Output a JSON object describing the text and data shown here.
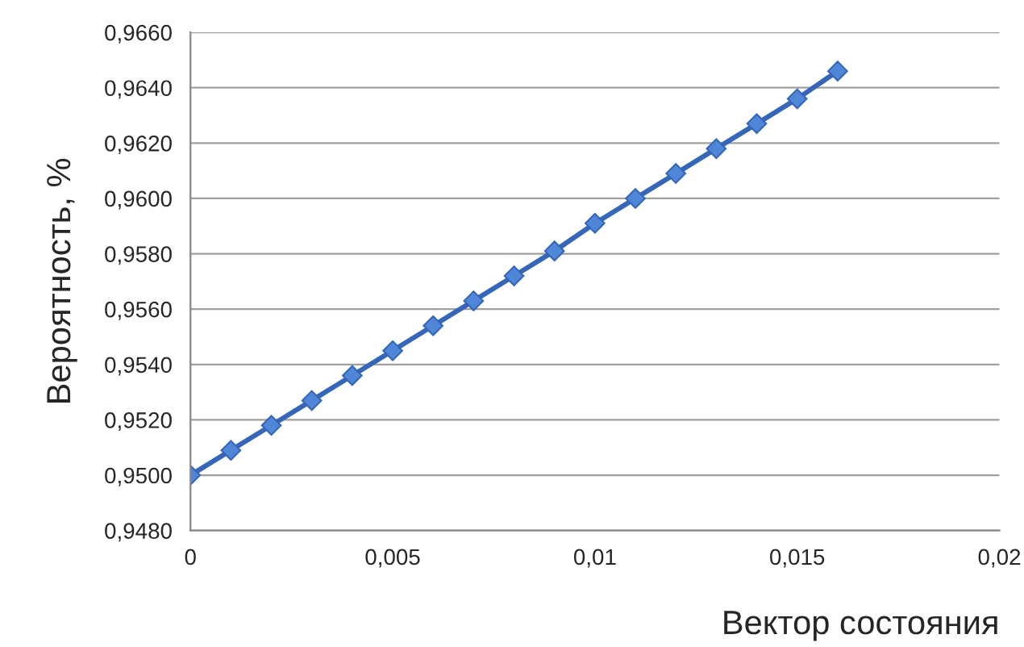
{
  "chart_data": {
    "type": "line",
    "xlabel": "Вектор состояния",
    "ylabel": "Вероятность, %",
    "x": [
      0,
      0.001,
      0.002,
      0.003,
      0.004,
      0.005,
      0.006,
      0.007,
      0.008,
      0.009,
      0.01,
      0.011,
      0.012,
      0.013,
      0.014,
      0.015,
      0.016
    ],
    "series": [
      {
        "color": "#3566b8",
        "values": [
          0.95,
          0.9509,
          0.9518,
          0.9527,
          0.9536,
          0.9545,
          0.9554,
          0.9563,
          0.9572,
          0.9581,
          0.9591,
          0.96,
          0.9609,
          0.9618,
          0.9627,
          0.9636,
          0.9646
        ]
      }
    ],
    "xlim": [
      0,
      0.02
    ],
    "xticks": [
      {
        "value": 0,
        "label": "0"
      },
      {
        "value": 0.005,
        "label": "0,005"
      },
      {
        "value": 0.01,
        "label": "0,01"
      },
      {
        "value": 0.015,
        "label": "0,015"
      },
      {
        "value": 0.02,
        "label": "0,02"
      }
    ],
    "ylim": [
      0.948,
      0.966
    ],
    "yticks": [
      {
        "value": 0.948,
        "label": "0,9480"
      },
      {
        "value": 0.95,
        "label": "0,9500"
      },
      {
        "value": 0.952,
        "label": "0,9520"
      },
      {
        "value": 0.954,
        "label": "0,9540"
      },
      {
        "value": 0.956,
        "label": "0,9560"
      },
      {
        "value": 0.958,
        "label": "0,9580"
      },
      {
        "value": 0.96,
        "label": "0,9600"
      },
      {
        "value": 0.962,
        "label": "0,9620"
      },
      {
        "value": 0.964,
        "label": "0,9640"
      },
      {
        "value": 0.966,
        "label": "0,9660"
      }
    ],
    "grid": "y",
    "marker": "diamond",
    "line_style": "solid"
  }
}
